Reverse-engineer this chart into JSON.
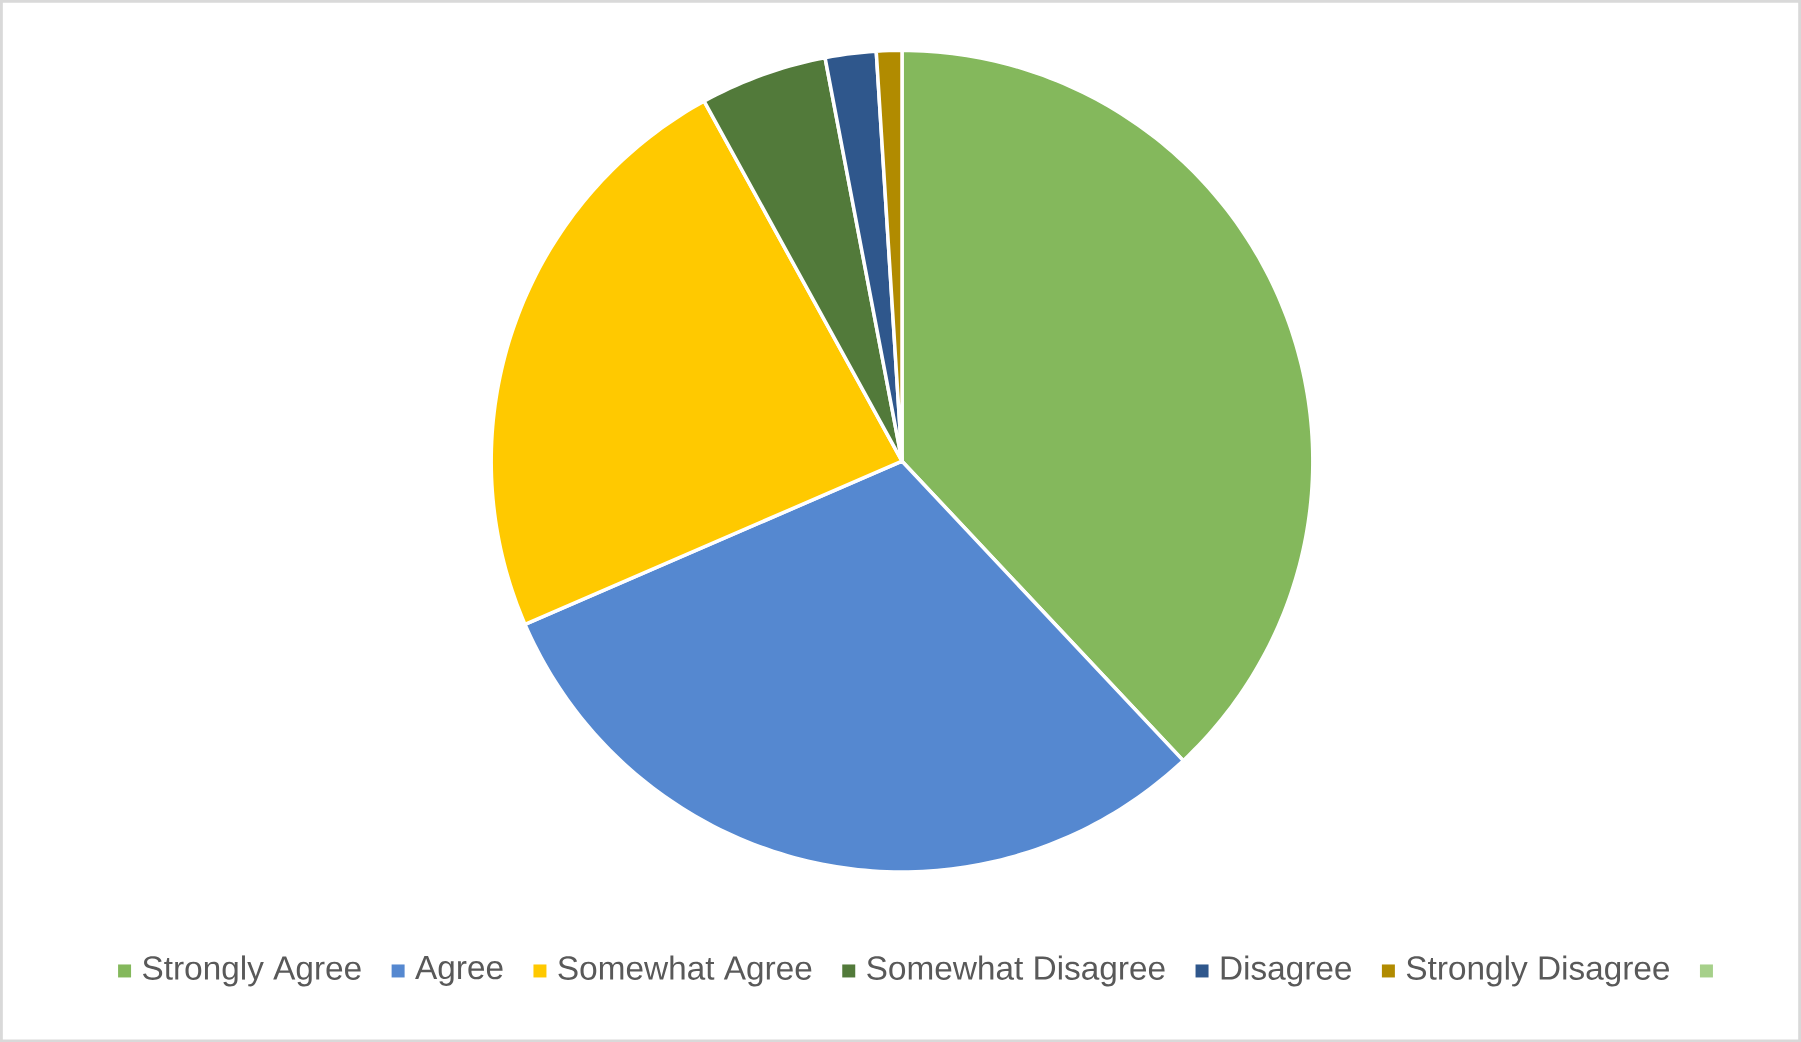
{
  "chart_data": {
    "type": "pie",
    "categories": [
      "Strongly Agree",
      "Agree",
      "Somewhat Agree",
      "Somewhat Disagree",
      "Disagree",
      "Strongly Disagree",
      null
    ],
    "values": [
      38,
      30.5,
      23.5,
      5,
      2,
      1,
      0
    ],
    "colors": [
      "#84b85c",
      "#5588d0",
      "#ffc900",
      "#527a3a",
      "#2f578c",
      "#b18b00",
      "#a6d08a"
    ],
    "legend": "bottom"
  }
}
